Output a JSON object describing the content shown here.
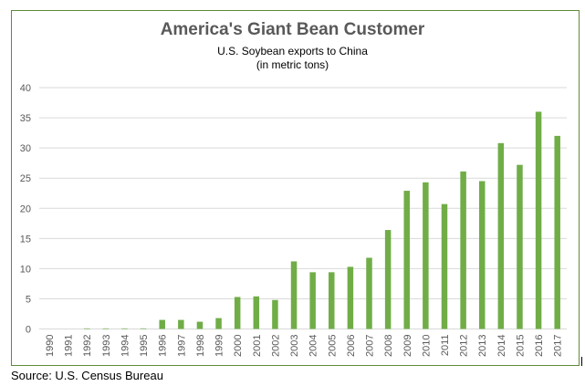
{
  "chart_data": {
    "type": "bar",
    "title": "America's Giant Bean Customer",
    "subtitle": [
      "U.S. Soybean exports to China",
      "(in metric tons)"
    ],
    "xlabel": "",
    "ylabel": "",
    "ylim": [
      0,
      40
    ],
    "yticks": [
      0,
      5,
      10,
      15,
      20,
      25,
      30,
      35,
      40
    ],
    "grid": true,
    "legend": "none",
    "bar_color": "#70ad47",
    "categories": [
      "1990",
      "1991",
      "1992",
      "1993",
      "1994",
      "1995",
      "1996",
      "1997",
      "1998",
      "1999",
      "2000",
      "2001",
      "2002",
      "2003",
      "2004",
      "2005",
      "2006",
      "2007",
      "2008",
      "2009",
      "2010",
      "2011",
      "2012",
      "2013",
      "2014",
      "2015",
      "2016",
      "2017"
    ],
    "values": [
      0,
      0,
      0.1,
      0.1,
      0.1,
      0.1,
      1.5,
      1.5,
      1.2,
      1.8,
      5.3,
      5.4,
      4.8,
      11.2,
      9.4,
      9.4,
      10.3,
      11.8,
      16.4,
      22.9,
      24.3,
      20.7,
      26.1,
      24.5,
      30.8,
      27.2,
      36.0,
      32.0
    ]
  },
  "source": "Source: U.S. Census Bureau"
}
